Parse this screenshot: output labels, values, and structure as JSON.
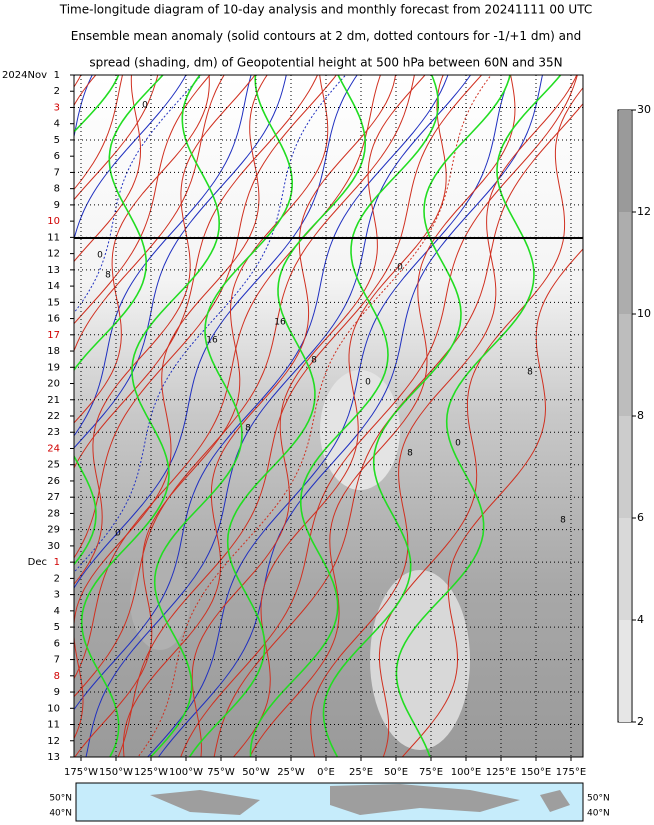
{
  "chart_data": {
    "type": "hovmoller",
    "title_lines": [
      "Time-longitude diagram of 10-day analysis and monthly forecast from 20241111 00 UTC",
      "Ensemble mean anomaly (solid contours at 2 dm, dotted contours for -1/+1 dm) and",
      "spread (shading, dm) of Geopotential height at 500 hPa between 60N and 35N"
    ],
    "rows": [
      {
        "label": "1",
        "month": "2024Nov"
      },
      {
        "label": "2"
      },
      {
        "label": "3",
        "red": true
      },
      {
        "label": "4"
      },
      {
        "label": "5"
      },
      {
        "label": "6"
      },
      {
        "label": "7"
      },
      {
        "label": "8"
      },
      {
        "label": "9"
      },
      {
        "label": "10",
        "red": true
      },
      {
        "label": "11"
      },
      {
        "label": "12"
      },
      {
        "label": "13"
      },
      {
        "label": "14"
      },
      {
        "label": "15"
      },
      {
        "label": "16"
      },
      {
        "label": "17",
        "red": true
      },
      {
        "label": "18"
      },
      {
        "label": "19"
      },
      {
        "label": "20"
      },
      {
        "label": "21"
      },
      {
        "label": "22"
      },
      {
        "label": "23"
      },
      {
        "label": "24",
        "red": true
      },
      {
        "label": "25"
      },
      {
        "label": "26"
      },
      {
        "label": "27"
      },
      {
        "label": "28"
      },
      {
        "label": "29"
      },
      {
        "label": "30"
      },
      {
        "label": "1",
        "month": "Dec",
        "red": true
      },
      {
        "label": "2"
      },
      {
        "label": "3"
      },
      {
        "label": "4"
      },
      {
        "label": "5"
      },
      {
        "label": "6"
      },
      {
        "label": "7"
      },
      {
        "label": "8",
        "red": true
      },
      {
        "label": "9"
      },
      {
        "label": "10"
      },
      {
        "label": "11"
      },
      {
        "label": "12"
      },
      {
        "label": "13"
      }
    ],
    "highlight_color": "#d00000",
    "xlim": [
      -180,
      180
    ],
    "xticks": [
      {
        "value": -175,
        "label": "175°W"
      },
      {
        "value": -150,
        "label": "150°W"
      },
      {
        "value": -125,
        "label": "125°W"
      },
      {
        "value": -100,
        "label": "100°W"
      },
      {
        "value": -75,
        "label": "75°W"
      },
      {
        "value": -50,
        "label": "50°W"
      },
      {
        "value": -25,
        "label": "25°W"
      },
      {
        "value": 0,
        "label": "0°E"
      },
      {
        "value": 25,
        "label": "25°E"
      },
      {
        "value": 50,
        "label": "50°E"
      },
      {
        "value": 75,
        "label": "75°E"
      },
      {
        "value": 100,
        "label": "100°E"
      },
      {
        "value": 125,
        "label": "125°E"
      },
      {
        "value": 150,
        "label": "150°E"
      },
      {
        "value": 175,
        "label": "175°E"
      }
    ],
    "grid": true,
    "colorbar": {
      "levels": [
        2,
        4,
        6,
        8,
        10,
        12,
        30
      ],
      "colors": [
        "#e6e6e6",
        "#d9d9d9",
        "#cccccc",
        "#bdbdbd",
        "#adadad",
        "#9a9a9a"
      ]
    },
    "contour_labels": [
      "0",
      "0",
      "8",
      "16",
      "0",
      "8",
      "0",
      "16",
      "8",
      "0",
      "8",
      "0",
      "8",
      "8"
    ],
    "map_labels": [
      "50°N",
      "40°N"
    ]
  }
}
